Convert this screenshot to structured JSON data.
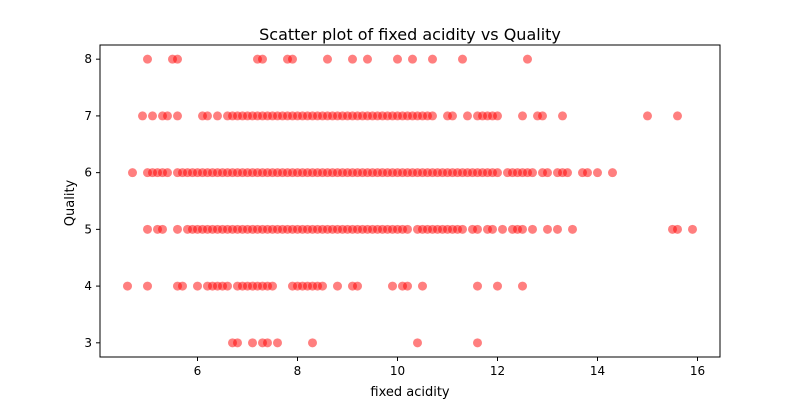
{
  "chart_data": {
    "type": "scatter",
    "title": "Scatter plot of fixed acidity vs Quality",
    "xlabel": "fixed acidity",
    "ylabel": "Quality",
    "xlim": [
      4.05,
      16.45
    ],
    "ylim": [
      2.75,
      8.25
    ],
    "xticks": [
      6,
      8,
      10,
      12,
      14,
      16
    ],
    "yticks": [
      3,
      4,
      5,
      6,
      7,
      8
    ],
    "grid": false,
    "marker_color": "#ff0000",
    "marker_alpha": 0.5,
    "series": [
      {
        "points": [
          [
            5.0,
            8
          ],
          [
            5.5,
            8
          ],
          [
            5.6,
            8
          ],
          [
            7.2,
            8
          ],
          [
            7.3,
            8
          ],
          [
            7.8,
            8
          ],
          [
            7.9,
            8
          ],
          [
            8.6,
            8
          ],
          [
            9.1,
            8
          ],
          [
            9.4,
            8
          ],
          [
            10.0,
            8
          ],
          [
            10.3,
            8
          ],
          [
            10.7,
            8
          ],
          [
            11.3,
            8
          ],
          [
            12.6,
            8
          ],
          [
            4.9,
            7
          ],
          [
            5.1,
            7
          ],
          [
            5.3,
            7
          ],
          [
            5.4,
            7
          ],
          [
            5.6,
            7
          ],
          [
            6.1,
            7
          ],
          [
            6.2,
            7
          ],
          [
            6.4,
            7
          ],
          [
            6.6,
            7
          ],
          [
            6.7,
            7
          ],
          [
            6.8,
            7
          ],
          [
            6.9,
            7
          ],
          [
            7.0,
            7
          ],
          [
            7.1,
            7
          ],
          [
            7.2,
            7
          ],
          [
            7.3,
            7
          ],
          [
            7.4,
            7
          ],
          [
            7.5,
            7
          ],
          [
            7.6,
            7
          ],
          [
            7.7,
            7
          ],
          [
            7.8,
            7
          ],
          [
            7.9,
            7
          ],
          [
            8.0,
            7
          ],
          [
            8.1,
            7
          ],
          [
            8.2,
            7
          ],
          [
            8.3,
            7
          ],
          [
            8.4,
            7
          ],
          [
            8.5,
            7
          ],
          [
            8.6,
            7
          ],
          [
            8.7,
            7
          ],
          [
            8.8,
            7
          ],
          [
            8.9,
            7
          ],
          [
            9.0,
            7
          ],
          [
            9.1,
            7
          ],
          [
            9.2,
            7
          ],
          [
            9.3,
            7
          ],
          [
            9.4,
            7
          ],
          [
            9.5,
            7
          ],
          [
            9.6,
            7
          ],
          [
            9.7,
            7
          ],
          [
            9.8,
            7
          ],
          [
            9.9,
            7
          ],
          [
            10.0,
            7
          ],
          [
            10.1,
            7
          ],
          [
            10.2,
            7
          ],
          [
            10.3,
            7
          ],
          [
            10.4,
            7
          ],
          [
            10.5,
            7
          ],
          [
            10.6,
            7
          ],
          [
            10.7,
            7
          ],
          [
            11.0,
            7
          ],
          [
            11.1,
            7
          ],
          [
            11.4,
            7
          ],
          [
            11.6,
            7
          ],
          [
            11.7,
            7
          ],
          [
            11.8,
            7
          ],
          [
            11.9,
            7
          ],
          [
            12.0,
            7
          ],
          [
            12.5,
            7
          ],
          [
            12.8,
            7
          ],
          [
            12.9,
            7
          ],
          [
            13.3,
            7
          ],
          [
            15.0,
            7
          ],
          [
            15.6,
            7
          ],
          [
            4.7,
            6
          ],
          [
            5.0,
            6
          ],
          [
            5.1,
            6
          ],
          [
            5.2,
            6
          ],
          [
            5.3,
            6
          ],
          [
            5.4,
            6
          ],
          [
            5.6,
            6
          ],
          [
            5.7,
            6
          ],
          [
            5.8,
            6
          ],
          [
            5.9,
            6
          ],
          [
            6.0,
            6
          ],
          [
            6.1,
            6
          ],
          [
            6.2,
            6
          ],
          [
            6.3,
            6
          ],
          [
            6.4,
            6
          ],
          [
            6.5,
            6
          ],
          [
            6.6,
            6
          ],
          [
            6.7,
            6
          ],
          [
            6.8,
            6
          ],
          [
            6.9,
            6
          ],
          [
            7.0,
            6
          ],
          [
            7.1,
            6
          ],
          [
            7.2,
            6
          ],
          [
            7.3,
            6
          ],
          [
            7.4,
            6
          ],
          [
            7.5,
            6
          ],
          [
            7.6,
            6
          ],
          [
            7.7,
            6
          ],
          [
            7.8,
            6
          ],
          [
            7.9,
            6
          ],
          [
            8.0,
            6
          ],
          [
            8.1,
            6
          ],
          [
            8.2,
            6
          ],
          [
            8.3,
            6
          ],
          [
            8.4,
            6
          ],
          [
            8.5,
            6
          ],
          [
            8.6,
            6
          ],
          [
            8.7,
            6
          ],
          [
            8.8,
            6
          ],
          [
            8.9,
            6
          ],
          [
            9.0,
            6
          ],
          [
            9.1,
            6
          ],
          [
            9.2,
            6
          ],
          [
            9.3,
            6
          ],
          [
            9.4,
            6
          ],
          [
            9.5,
            6
          ],
          [
            9.6,
            6
          ],
          [
            9.7,
            6
          ],
          [
            9.8,
            6
          ],
          [
            9.9,
            6
          ],
          [
            10.0,
            6
          ],
          [
            10.1,
            6
          ],
          [
            10.2,
            6
          ],
          [
            10.3,
            6
          ],
          [
            10.4,
            6
          ],
          [
            10.5,
            6
          ],
          [
            10.6,
            6
          ],
          [
            10.7,
            6
          ],
          [
            10.8,
            6
          ],
          [
            10.9,
            6
          ],
          [
            11.0,
            6
          ],
          [
            11.1,
            6
          ],
          [
            11.2,
            6
          ],
          [
            11.3,
            6
          ],
          [
            11.4,
            6
          ],
          [
            11.5,
            6
          ],
          [
            11.6,
            6
          ],
          [
            11.7,
            6
          ],
          [
            11.8,
            6
          ],
          [
            11.9,
            6
          ],
          [
            12.0,
            6
          ],
          [
            12.2,
            6
          ],
          [
            12.3,
            6
          ],
          [
            12.4,
            6
          ],
          [
            12.5,
            6
          ],
          [
            12.6,
            6
          ],
          [
            12.7,
            6
          ],
          [
            12.9,
            6
          ],
          [
            13.0,
            6
          ],
          [
            13.2,
            6
          ],
          [
            13.3,
            6
          ],
          [
            13.4,
            6
          ],
          [
            13.7,
            6
          ],
          [
            13.8,
            6
          ],
          [
            14.0,
            6
          ],
          [
            14.3,
            6
          ],
          [
            5.0,
            5
          ],
          [
            5.2,
            5
          ],
          [
            5.3,
            5
          ],
          [
            5.6,
            5
          ],
          [
            5.8,
            5
          ],
          [
            5.9,
            5
          ],
          [
            6.0,
            5
          ],
          [
            6.1,
            5
          ],
          [
            6.2,
            5
          ],
          [
            6.3,
            5
          ],
          [
            6.4,
            5
          ],
          [
            6.5,
            5
          ],
          [
            6.6,
            5
          ],
          [
            6.7,
            5
          ],
          [
            6.8,
            5
          ],
          [
            6.9,
            5
          ],
          [
            7.0,
            5
          ],
          [
            7.1,
            5
          ],
          [
            7.2,
            5
          ],
          [
            7.3,
            5
          ],
          [
            7.4,
            5
          ],
          [
            7.5,
            5
          ],
          [
            7.6,
            5
          ],
          [
            7.7,
            5
          ],
          [
            7.8,
            5
          ],
          [
            7.9,
            5
          ],
          [
            8.0,
            5
          ],
          [
            8.1,
            5
          ],
          [
            8.2,
            5
          ],
          [
            8.3,
            5
          ],
          [
            8.4,
            5
          ],
          [
            8.5,
            5
          ],
          [
            8.6,
            5
          ],
          [
            8.7,
            5
          ],
          [
            8.8,
            5
          ],
          [
            8.9,
            5
          ],
          [
            9.0,
            5
          ],
          [
            9.1,
            5
          ],
          [
            9.2,
            5
          ],
          [
            9.3,
            5
          ],
          [
            9.4,
            5
          ],
          [
            9.5,
            5
          ],
          [
            9.6,
            5
          ],
          [
            9.7,
            5
          ],
          [
            9.8,
            5
          ],
          [
            9.9,
            5
          ],
          [
            10.0,
            5
          ],
          [
            10.1,
            5
          ],
          [
            10.2,
            5
          ],
          [
            10.4,
            5
          ],
          [
            10.5,
            5
          ],
          [
            10.6,
            5
          ],
          [
            10.7,
            5
          ],
          [
            10.8,
            5
          ],
          [
            10.9,
            5
          ],
          [
            11.0,
            5
          ],
          [
            11.1,
            5
          ],
          [
            11.2,
            5
          ],
          [
            11.3,
            5
          ],
          [
            11.5,
            5
          ],
          [
            11.6,
            5
          ],
          [
            11.8,
            5
          ],
          [
            11.9,
            5
          ],
          [
            12.1,
            5
          ],
          [
            12.3,
            5
          ],
          [
            12.4,
            5
          ],
          [
            12.5,
            5
          ],
          [
            12.7,
            5
          ],
          [
            13.0,
            5
          ],
          [
            13.2,
            5
          ],
          [
            13.5,
            5
          ],
          [
            15.5,
            5
          ],
          [
            15.6,
            5
          ],
          [
            15.9,
            5
          ],
          [
            4.6,
            4
          ],
          [
            5.0,
            4
          ],
          [
            5.6,
            4
          ],
          [
            5.7,
            4
          ],
          [
            6.0,
            4
          ],
          [
            6.2,
            4
          ],
          [
            6.3,
            4
          ],
          [
            6.4,
            4
          ],
          [
            6.5,
            4
          ],
          [
            6.6,
            4
          ],
          [
            6.8,
            4
          ],
          [
            6.9,
            4
          ],
          [
            7.0,
            4
          ],
          [
            7.1,
            4
          ],
          [
            7.2,
            4
          ],
          [
            7.3,
            4
          ],
          [
            7.4,
            4
          ],
          [
            7.5,
            4
          ],
          [
            7.9,
            4
          ],
          [
            8.0,
            4
          ],
          [
            8.1,
            4
          ],
          [
            8.2,
            4
          ],
          [
            8.3,
            4
          ],
          [
            8.4,
            4
          ],
          [
            8.5,
            4
          ],
          [
            8.8,
            4
          ],
          [
            9.1,
            4
          ],
          [
            9.2,
            4
          ],
          [
            9.9,
            4
          ],
          [
            10.1,
            4
          ],
          [
            10.2,
            4
          ],
          [
            10.5,
            4
          ],
          [
            11.6,
            4
          ],
          [
            12.0,
            4
          ],
          [
            12.5,
            4
          ],
          [
            6.7,
            3
          ],
          [
            6.8,
            3
          ],
          [
            7.1,
            3
          ],
          [
            7.3,
            3
          ],
          [
            7.4,
            3
          ],
          [
            7.6,
            3
          ],
          [
            8.3,
            3
          ],
          [
            10.4,
            3
          ],
          [
            11.6,
            3
          ]
        ]
      }
    ]
  }
}
